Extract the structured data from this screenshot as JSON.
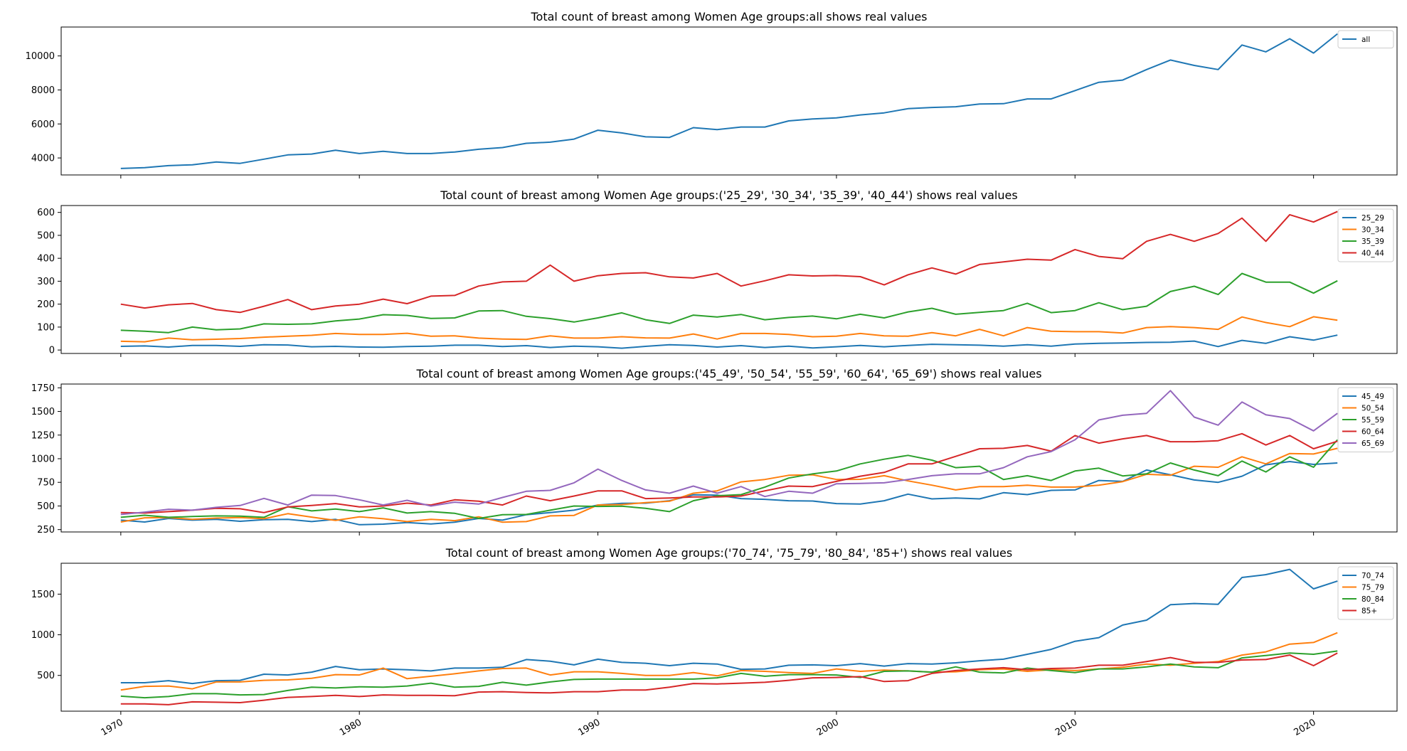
{
  "chart_data": [
    {
      "type": "line",
      "title": "Total count of breast among Women Age groups:all shows real values",
      "xlabel": "",
      "ylabel": "",
      "ylim": [
        3000,
        11700
      ],
      "yticks": [
        4000,
        6000,
        8000,
        10000
      ],
      "xlim": [
        1967.5,
        2023.5
      ],
      "legend": "top-right",
      "x": [
        1970,
        1971,
        1972,
        1973,
        1974,
        1975,
        1976,
        1977,
        1978,
        1979,
        1980,
        1981,
        1982,
        1983,
        1984,
        1985,
        1986,
        1987,
        1988,
        1989,
        1990,
        1991,
        1992,
        1993,
        1994,
        1995,
        1996,
        1997,
        1998,
        1999,
        2000,
        2001,
        2002,
        2003,
        2004,
        2005,
        2006,
        2007,
        2008,
        2009,
        2010,
        2011,
        2012,
        2013,
        2014,
        2015,
        2016,
        2017,
        2018,
        2019,
        2020,
        2021
      ],
      "series": [
        {
          "name": "all",
          "color": "#1f77b4",
          "values": [
            3380,
            3430,
            3550,
            3600,
            3760,
            3680,
            3930,
            4180,
            4230,
            4450,
            4260,
            4390,
            4260,
            4260,
            4350,
            4510,
            4610,
            4860,
            4930,
            5110,
            5630,
            5470,
            5240,
            5210,
            5780,
            5670,
            5820,
            5820,
            6180,
            6290,
            6360,
            6530,
            6650,
            6900,
            6970,
            7010,
            7170,
            7190,
            7470,
            7470,
            7960,
            8450,
            8580,
            9200,
            9760,
            9440,
            9200,
            10640,
            10240,
            11010,
            10170,
            11300
          ]
        }
      ]
    },
    {
      "type": "line",
      "title": "Total count of breast among Women Age groups:('25_29', '30_34', '35_39', '40_44') shows real values",
      "xlabel": "",
      "ylabel": "",
      "ylim": [
        -15,
        630
      ],
      "yticks": [
        0,
        100,
        200,
        300,
        400,
        500,
        600
      ],
      "xlim": [
        1967.5,
        2023.5
      ],
      "legend": "top-right",
      "x": [
        1970,
        1971,
        1972,
        1973,
        1974,
        1975,
        1976,
        1977,
        1978,
        1979,
        1980,
        1981,
        1982,
        1983,
        1984,
        1985,
        1986,
        1987,
        1988,
        1989,
        1990,
        1991,
        1992,
        1993,
        1994,
        1995,
        1996,
        1997,
        1998,
        1999,
        2000,
        2001,
        2002,
        2003,
        2004,
        2005,
        2006,
        2007,
        2008,
        2009,
        2010,
        2011,
        2012,
        2013,
        2014,
        2015,
        2016,
        2017,
        2018,
        2019,
        2020,
        2021
      ],
      "series": [
        {
          "name": "25_29",
          "color": "#1f77b4",
          "values": [
            16,
            18,
            13,
            20,
            20,
            16,
            23,
            22,
            14,
            16,
            13,
            12,
            15,
            17,
            21,
            21,
            15,
            19,
            11,
            17,
            14,
            8,
            16,
            23,
            20,
            13,
            19,
            11,
            17,
            9,
            14,
            20,
            14,
            20,
            25,
            23,
            21,
            17,
            23,
            17,
            26,
            29,
            31,
            33,
            34,
            39,
            15,
            42,
            29,
            58,
            43,
            65
          ]
        },
        {
          "name": "30_34",
          "color": "#ff7f0e",
          "values": [
            38,
            36,
            52,
            45,
            47,
            50,
            56,
            60,
            64,
            72,
            68,
            68,
            73,
            60,
            62,
            52,
            48,
            46,
            62,
            52,
            52,
            58,
            53,
            52,
            70,
            48,
            72,
            72,
            68,
            58,
            60,
            72,
            62,
            60,
            76,
            62,
            90,
            62,
            98,
            82,
            80,
            80,
            74,
            98,
            102,
            98,
            90,
            144,
            120,
            102,
            145,
            130
          ]
        },
        {
          "name": "35_39",
          "color": "#2ca02c",
          "values": [
            86,
            82,
            76,
            100,
            88,
            92,
            114,
            112,
            114,
            127,
            135,
            154,
            151,
            138,
            140,
            170,
            172,
            147,
            137,
            122,
            140,
            162,
            132,
            116,
            152,
            144,
            155,
            132,
            142,
            148,
            136,
            156,
            140,
            166,
            182,
            156,
            164,
            172,
            204,
            163,
            172,
            206,
            176,
            191,
            255,
            278,
            242,
            334,
            296,
            296,
            248,
            302
          ]
        },
        {
          "name": "40_44",
          "color": "#d62728",
          "values": [
            200,
            183,
            197,
            203,
            176,
            164,
            191,
            220,
            176,
            192,
            200,
            222,
            202,
            235,
            238,
            279,
            297,
            300,
            370,
            300,
            324,
            334,
            337,
            319,
            314,
            334,
            279,
            302,
            328,
            323,
            325,
            320,
            284,
            328,
            358,
            331,
            373,
            384,
            396,
            392,
            438,
            408,
            398,
            474,
            504,
            474,
            508,
            575,
            474,
            590,
            558,
            604
          ]
        }
      ]
    },
    {
      "type": "line",
      "title": "Total count of breast among Women Age groups:('45_49', '50_54', '55_59', '60_64', '65_69') shows real values",
      "xlabel": "",
      "ylabel": "",
      "ylim": [
        225,
        1790
      ],
      "yticks": [
        250,
        500,
        750,
        1000,
        1250,
        1500,
        1750
      ],
      "xlim": [
        1967.5,
        2023.5
      ],
      "legend": "top-right",
      "x": [
        1970,
        1971,
        1972,
        1973,
        1974,
        1975,
        1976,
        1977,
        1978,
        1979,
        1980,
        1981,
        1982,
        1983,
        1984,
        1985,
        1986,
        1987,
        1988,
        1989,
        1990,
        1991,
        1992,
        1993,
        1994,
        1995,
        1996,
        1997,
        1998,
        1999,
        2000,
        2001,
        2002,
        2003,
        2004,
        2005,
        2006,
        2007,
        2008,
        2009,
        2010,
        2011,
        2012,
        2013,
        2014,
        2015,
        2016,
        2017,
        2018,
        2019,
        2020,
        2021
      ],
      "series": [
        {
          "name": "45_49",
          "color": "#1f77b4",
          "values": [
            350,
            330,
            368,
            350,
            358,
            338,
            355,
            358,
            335,
            358,
            302,
            308,
            325,
            310,
            328,
            368,
            350,
            408,
            430,
            455,
            510,
            528,
            530,
            555,
            618,
            615,
            578,
            570,
            555,
            552,
            525,
            520,
            555,
            625,
            575,
            585,
            575,
            640,
            620,
            665,
            670,
            770,
            760,
            880,
            830,
            775,
            750,
            815,
            935,
            970,
            940,
            955
          ]
        },
        {
          "name": "50_54",
          "color": "#ff7f0e",
          "values": [
            330,
            375,
            378,
            358,
            372,
            378,
            365,
            418,
            382,
            348,
            385,
            365,
            335,
            358,
            345,
            385,
            328,
            335,
            395,
            400,
            510,
            515,
            535,
            550,
            635,
            660,
            755,
            780,
            825,
            830,
            780,
            782,
            820,
            765,
            720,
            670,
            705,
            705,
            720,
            700,
            700,
            720,
            758,
            835,
            825,
            920,
            910,
            1020,
            945,
            1055,
            1050,
            1110
          ]
        },
        {
          "name": "55_59",
          "color": "#2ca02c",
          "values": [
            380,
            402,
            380,
            388,
            395,
            392,
            380,
            492,
            448,
            468,
            440,
            480,
            425,
            440,
            422,
            368,
            408,
            410,
            455,
            500,
            495,
            498,
            475,
            440,
            555,
            608,
            620,
            700,
            795,
            840,
            870,
            945,
            995,
            1035,
            985,
            905,
            920,
            780,
            820,
            770,
            870,
            900,
            818,
            840,
            955,
            880,
            820,
            975,
            860,
            1020,
            910,
            1200
          ]
        },
        {
          "name": "60_64",
          "color": "#d62728",
          "values": [
            430,
            425,
            440,
            455,
            475,
            470,
            430,
            490,
            505,
            525,
            490,
            500,
            530,
            510,
            565,
            550,
            510,
            605,
            555,
            605,
            660,
            660,
            578,
            585,
            595,
            595,
            605,
            660,
            710,
            705,
            760,
            815,
            855,
            945,
            945,
            1025,
            1105,
            1110,
            1140,
            1080,
            1245,
            1165,
            1210,
            1245,
            1180,
            1180,
            1190,
            1265,
            1145,
            1245,
            1105,
            1185
          ]
        },
        {
          "name": "65_69",
          "color": "#9467bd",
          "values": [
            410,
            435,
            465,
            455,
            485,
            505,
            580,
            510,
            615,
            610,
            565,
            510,
            560,
            500,
            540,
            520,
            590,
            655,
            665,
            745,
            890,
            770,
            670,
            635,
            710,
            635,
            705,
            600,
            655,
            635,
            735,
            738,
            745,
            780,
            820,
            840,
            840,
            905,
            1020,
            1075,
            1200,
            1410,
            1460,
            1480,
            1720,
            1440,
            1355,
            1600,
            1465,
            1425,
            1295,
            1480
          ]
        }
      ]
    },
    {
      "type": "line",
      "title": "Total count of breast among Women Age groups:('70_74', '75_79', '80_84', '85+') shows real values",
      "xlabel": "",
      "ylabel": "",
      "ylim": [
        60,
        1880
      ],
      "yticks": [
        500,
        1000,
        1500
      ],
      "xlim": [
        1967.5,
        2023.5
      ],
      "xticks": [
        1970,
        1980,
        1990,
        2000,
        2010,
        2020
      ],
      "legend": "top-right",
      "x": [
        1970,
        1971,
        1972,
        1973,
        1974,
        1975,
        1976,
        1977,
        1978,
        1979,
        1980,
        1981,
        1982,
        1983,
        1984,
        1985,
        1986,
        1987,
        1988,
        1989,
        1990,
        1991,
        1992,
        1993,
        1994,
        1995,
        1996,
        1997,
        1998,
        1999,
        2000,
        2001,
        2002,
        2003,
        2004,
        2005,
        2006,
        2007,
        2008,
        2009,
        2010,
        2011,
        2012,
        2013,
        2014,
        2015,
        2016,
        2017,
        2018,
        2019,
        2020,
        2021
      ],
      "series": [
        {
          "name": "70_74",
          "color": "#1f77b4",
          "values": [
            410,
            410,
            435,
            400,
            435,
            440,
            515,
            505,
            540,
            610,
            570,
            580,
            570,
            555,
            590,
            590,
            600,
            695,
            675,
            630,
            700,
            660,
            650,
            620,
            650,
            640,
            575,
            580,
            625,
            630,
            620,
            645,
            615,
            645,
            640,
            655,
            680,
            700,
            760,
            820,
            920,
            965,
            1120,
            1180,
            1370,
            1385,
            1375,
            1705,
            1740,
            1805,
            1565,
            1660
          ]
        },
        {
          "name": "75_79",
          "color": "#ff7f0e",
          "values": [
            320,
            365,
            370,
            335,
            420,
            420,
            440,
            445,
            465,
            510,
            505,
            590,
            460,
            490,
            520,
            555,
            585,
            590,
            505,
            545,
            545,
            525,
            500,
            500,
            535,
            495,
            560,
            550,
            535,
            525,
            580,
            550,
            565,
            555,
            540,
            545,
            570,
            580,
            550,
            570,
            560,
            580,
            600,
            640,
            625,
            650,
            670,
            750,
            790,
            885,
            905,
            1025
          ]
        },
        {
          "name": "80_84",
          "color": "#2ca02c",
          "values": [
            245,
            225,
            240,
            275,
            275,
            260,
            265,
            315,
            355,
            345,
            360,
            355,
            370,
            405,
            355,
            365,
            415,
            380,
            420,
            450,
            455,
            455,
            455,
            455,
            455,
            470,
            525,
            490,
            510,
            510,
            505,
            475,
            550,
            555,
            540,
            605,
            540,
            530,
            590,
            560,
            535,
            580,
            580,
            605,
            640,
            605,
            595,
            715,
            745,
            775,
            760,
            800
          ]
        },
        {
          "name": "85+",
          "color": "#d62728",
          "values": [
            150,
            150,
            140,
            175,
            170,
            165,
            195,
            230,
            240,
            255,
            240,
            260,
            255,
            255,
            250,
            295,
            300,
            290,
            285,
            300,
            300,
            320,
            320,
            355,
            400,
            395,
            405,
            415,
            440,
            470,
            475,
            485,
            425,
            435,
            525,
            560,
            580,
            595,
            570,
            585,
            590,
            625,
            625,
            670,
            720,
            660,
            660,
            690,
            695,
            750,
            620,
            775
          ]
        }
      ]
    }
  ]
}
